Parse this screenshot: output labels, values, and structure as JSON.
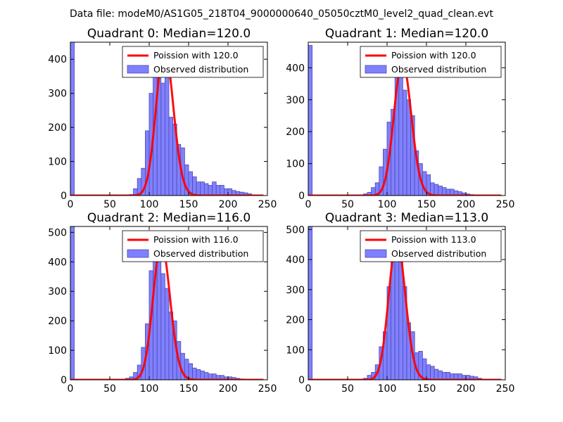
{
  "suptitle": "Data file: modeM0/AS1G05_218T04_9000000640_05050cztM0_level2_quad_clean.evt",
  "colors": {
    "hist_fill": "#8080ff",
    "hist_edge": "#4b4bb5",
    "poisson_line": "#ff0000",
    "axes": "#000000",
    "background": "#ffffff"
  },
  "chart_data": [
    {
      "type": "bar",
      "title": "Quadrant 0: Median=120.0",
      "median": 120.0,
      "xlim": [
        0,
        250
      ],
      "ylim": [
        0,
        450
      ],
      "xticks": [
        0,
        50,
        100,
        150,
        200,
        250
      ],
      "yticks": [
        0,
        100,
        200,
        300,
        400
      ],
      "bin_width": 5,
      "bin_left_edges": [
        0,
        75,
        80,
        85,
        90,
        95,
        100,
        105,
        110,
        115,
        120,
        125,
        130,
        135,
        140,
        145,
        150,
        155,
        160,
        165,
        170,
        175,
        180,
        185,
        190,
        195,
        200,
        205,
        210,
        215,
        220,
        225
      ],
      "bin_values": [
        455,
        3,
        20,
        50,
        80,
        190,
        300,
        395,
        430,
        330,
        380,
        230,
        210,
        150,
        140,
        90,
        70,
        55,
        40,
        40,
        35,
        30,
        40,
        30,
        30,
        20,
        20,
        15,
        12,
        10,
        8,
        5
      ],
      "legend": [
        "Poission with 120.0",
        "Observed distribution"
      ]
    },
    {
      "type": "bar",
      "title": "Quadrant 1: Median=120.0",
      "median": 120.0,
      "xlim": [
        0,
        250
      ],
      "ylim": [
        0,
        480
      ],
      "xticks": [
        0,
        50,
        100,
        150,
        200,
        250
      ],
      "yticks": [
        0,
        100,
        200,
        300,
        400
      ],
      "bin_width": 5,
      "bin_left_edges": [
        0,
        70,
        75,
        80,
        85,
        90,
        95,
        100,
        105,
        110,
        115,
        120,
        125,
        130,
        135,
        140,
        145,
        150,
        155,
        160,
        165,
        170,
        175,
        180,
        185,
        190,
        195,
        200,
        205
      ],
      "bin_values": [
        470,
        5,
        10,
        25,
        40,
        90,
        145,
        230,
        270,
        400,
        420,
        330,
        300,
        250,
        140,
        100,
        75,
        65,
        40,
        35,
        30,
        25,
        20,
        20,
        15,
        12,
        8,
        5,
        3
      ],
      "legend": [
        "Poission with 120.0",
        "Observed distribution"
      ]
    },
    {
      "type": "bar",
      "title": "Quadrant 2: Median=116.0",
      "median": 116.0,
      "xlim": [
        0,
        250
      ],
      "ylim": [
        0,
        520
      ],
      "xticks": [
        0,
        50,
        100,
        150,
        200,
        250
      ],
      "yticks": [
        0,
        100,
        200,
        300,
        400,
        500
      ],
      "bin_width": 5,
      "bin_left_edges": [
        0,
        70,
        75,
        80,
        85,
        90,
        95,
        100,
        105,
        110,
        115,
        120,
        125,
        130,
        135,
        140,
        145,
        150,
        155,
        160,
        165,
        170,
        175,
        180,
        185,
        190,
        195,
        200,
        205,
        210,
        215
      ],
      "bin_values": [
        520,
        5,
        10,
        25,
        50,
        110,
        190,
        370,
        420,
        460,
        360,
        310,
        230,
        200,
        130,
        90,
        70,
        55,
        40,
        35,
        30,
        25,
        20,
        20,
        15,
        15,
        10,
        10,
        8,
        5,
        3
      ],
      "legend": [
        "Poission with 116.0",
        "Observed distribution"
      ]
    },
    {
      "type": "bar",
      "title": "Quadrant 3: Median=113.0",
      "median": 113.0,
      "xlim": [
        0,
        250
      ],
      "ylim": [
        0,
        510
      ],
      "xticks": [
        0,
        50,
        100,
        150,
        200,
        250
      ],
      "yticks": [
        0,
        100,
        200,
        300,
        400,
        500
      ],
      "bin_width": 5,
      "bin_left_edges": [
        0,
        70,
        75,
        80,
        85,
        90,
        95,
        100,
        105,
        110,
        115,
        120,
        125,
        130,
        135,
        140,
        145,
        150,
        155,
        160,
        165,
        170,
        175,
        180,
        185,
        190,
        195,
        200,
        205,
        210,
        215
      ],
      "bin_values": [
        510,
        5,
        15,
        25,
        50,
        110,
        160,
        310,
        440,
        460,
        400,
        310,
        190,
        160,
        90,
        95,
        70,
        50,
        45,
        35,
        30,
        25,
        25,
        20,
        20,
        20,
        15,
        15,
        12,
        10,
        5
      ],
      "legend": [
        "Poission with 113.0",
        "Observed distribution"
      ]
    }
  ]
}
